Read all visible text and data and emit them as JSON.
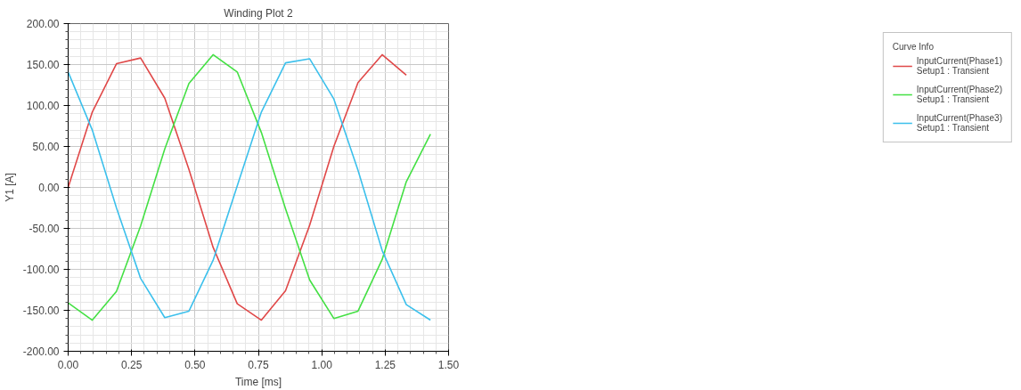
{
  "chart_data": {
    "type": "line",
    "title": "Winding Plot 2",
    "xlabel": "Time [ms]",
    "ylabel": "Y1 [A]",
    "legend_title": "Curve Info",
    "x": [
      0,
      0.0952,
      0.1905,
      0.2857,
      0.381,
      0.4762,
      0.5714,
      0.6667,
      0.7619,
      0.8571,
      0.9524,
      1.0476,
      1.1429,
      1.2381,
      1.3333,
      1.4286
    ],
    "series": [
      {
        "name": "InputCurrent(Phase1)\nSetup1 : Transient",
        "color": "#e04848",
        "values": [
          0,
          92,
          151,
          158,
          109,
          22,
          -73,
          -142,
          -162,
          -126,
          -46,
          50,
          128,
          162,
          137,
          null
        ]
      },
      {
        "name": "InputCurrent(Phase2)\nSetup1 : Transient",
        "color": "#44e044",
        "values": [
          -141,
          -162,
          -127,
          -47,
          47,
          127,
          162,
          141,
          67,
          -26,
          -113,
          -160,
          -151,
          -88,
          7,
          65
        ]
      },
      {
        "name": "InputCurrent(Phase3)\nSetup1 : Transient",
        "color": "#3cc0ec",
        "values": [
          141,
          70,
          -25,
          -111,
          -159,
          -151,
          -89,
          2,
          92,
          152,
          157,
          108,
          21,
          -77,
          -143,
          -162
        ]
      }
    ],
    "xlim": [
      0,
      1.5
    ],
    "ylim": [
      -200,
      200
    ],
    "xticks": [
      {
        "value": 0,
        "label": "0.00"
      },
      {
        "value": 0.25,
        "label": "0.25"
      },
      {
        "value": 0.5,
        "label": "0.50"
      },
      {
        "value": 0.75,
        "label": "0.75"
      },
      {
        "value": 1.0,
        "label": "1.00"
      },
      {
        "value": 1.25,
        "label": "1.25"
      },
      {
        "value": 1.5,
        "label": "1.50"
      }
    ],
    "yticks": [
      {
        "value": -200,
        "label": "-200.00"
      },
      {
        "value": -150,
        "label": "-150.00"
      },
      {
        "value": -100,
        "label": "-100.00"
      },
      {
        "value": -50,
        "label": "-50.00"
      },
      {
        "value": 0,
        "label": "0.00"
      },
      {
        "value": 50,
        "label": "50.00"
      },
      {
        "value": 100,
        "label": "100.00"
      },
      {
        "value": 150,
        "label": "150.00"
      },
      {
        "value": 200,
        "label": "200.00"
      }
    ],
    "grid": true,
    "legend": "right",
    "marker": "none",
    "line_style": "solid"
  }
}
